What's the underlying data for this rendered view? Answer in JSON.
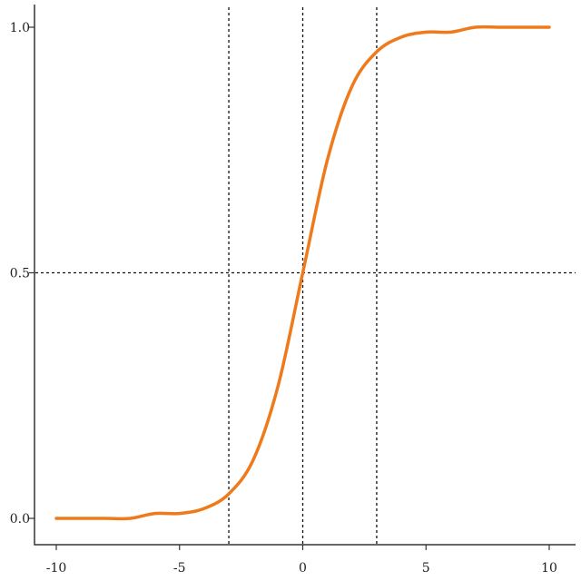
{
  "chart_data": {
    "type": "line",
    "title": "",
    "xlabel": "",
    "ylabel": "",
    "xlim": [
      -10,
      10
    ],
    "ylim": [
      0,
      1
    ],
    "grid": false,
    "x_ticks": [
      -10,
      -5,
      0,
      5,
      10
    ],
    "y_ticks": [
      0.0,
      0.5,
      1.0
    ],
    "x_tick_labels": [
      "-10",
      "-5",
      "0",
      "5",
      "10"
    ],
    "y_tick_labels": [
      "0.0",
      "0.5",
      "1.0"
    ],
    "reference_lines": {
      "vertical_x": [
        -3,
        0,
        3
      ],
      "horizontal_y": [
        0.5
      ],
      "style": "dotted"
    },
    "series": [
      {
        "function": "logistic",
        "x": [
          -10,
          -9,
          -8,
          -7,
          -6,
          -5,
          -4,
          -3,
          -2,
          -1,
          0,
          1,
          2,
          3,
          4,
          5,
          6,
          7,
          8,
          9,
          10
        ],
        "y": [
          0.0,
          0.0,
          0.0,
          0.0,
          0.01,
          0.01,
          0.02,
          0.05,
          0.12,
          0.27,
          0.5,
          0.73,
          0.88,
          0.95,
          0.98,
          0.99,
          0.99,
          1.0,
          1.0,
          1.0,
          1.0
        ],
        "color": "#ee7a1c"
      }
    ]
  }
}
